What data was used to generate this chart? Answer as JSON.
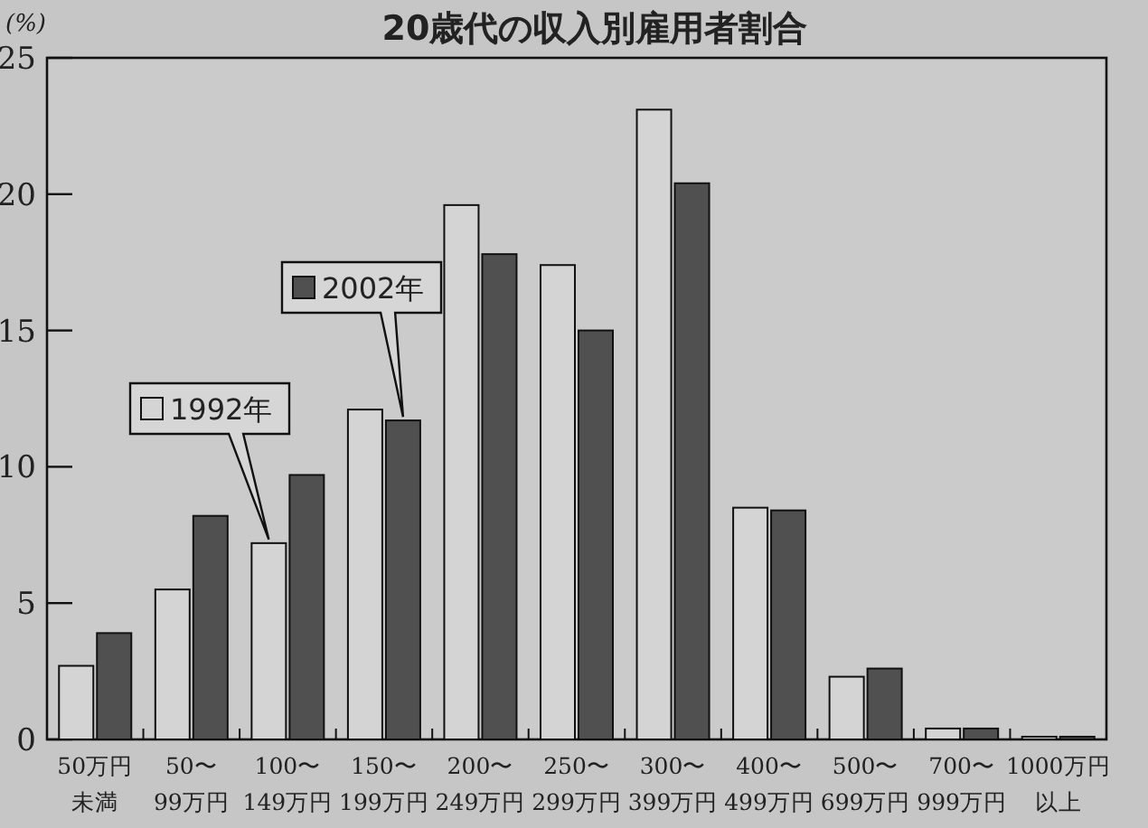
{
  "chart_data": {
    "type": "bar",
    "title": "20歳代の収入別雇用者割合",
    "ylabel": "(%)",
    "categories": [
      "50万円未満",
      "50〜99万円",
      "100〜149万円",
      "150〜199万円",
      "200〜249万円",
      "250〜299万円",
      "300〜399万円",
      "400〜499万円",
      "500〜699万円",
      "700〜999万円",
      "1000万円以上"
    ],
    "series": [
      {
        "name": "1992年",
        "color": "#d4d4d4",
        "values": [
          2.7,
          5.5,
          7.2,
          12.1,
          19.6,
          17.4,
          23.1,
          8.5,
          2.3,
          0.4,
          0.1
        ]
      },
      {
        "name": "2002年",
        "color": "#505050",
        "values": [
          3.9,
          8.2,
          9.7,
          11.7,
          17.8,
          15.0,
          20.4,
          8.4,
          2.6,
          0.4,
          0.1
        ]
      }
    ],
    "ylim": [
      0,
      25
    ],
    "yticks": [
      0,
      5,
      10,
      15,
      20,
      25
    ],
    "grid": false,
    "legend": "top left"
  }
}
